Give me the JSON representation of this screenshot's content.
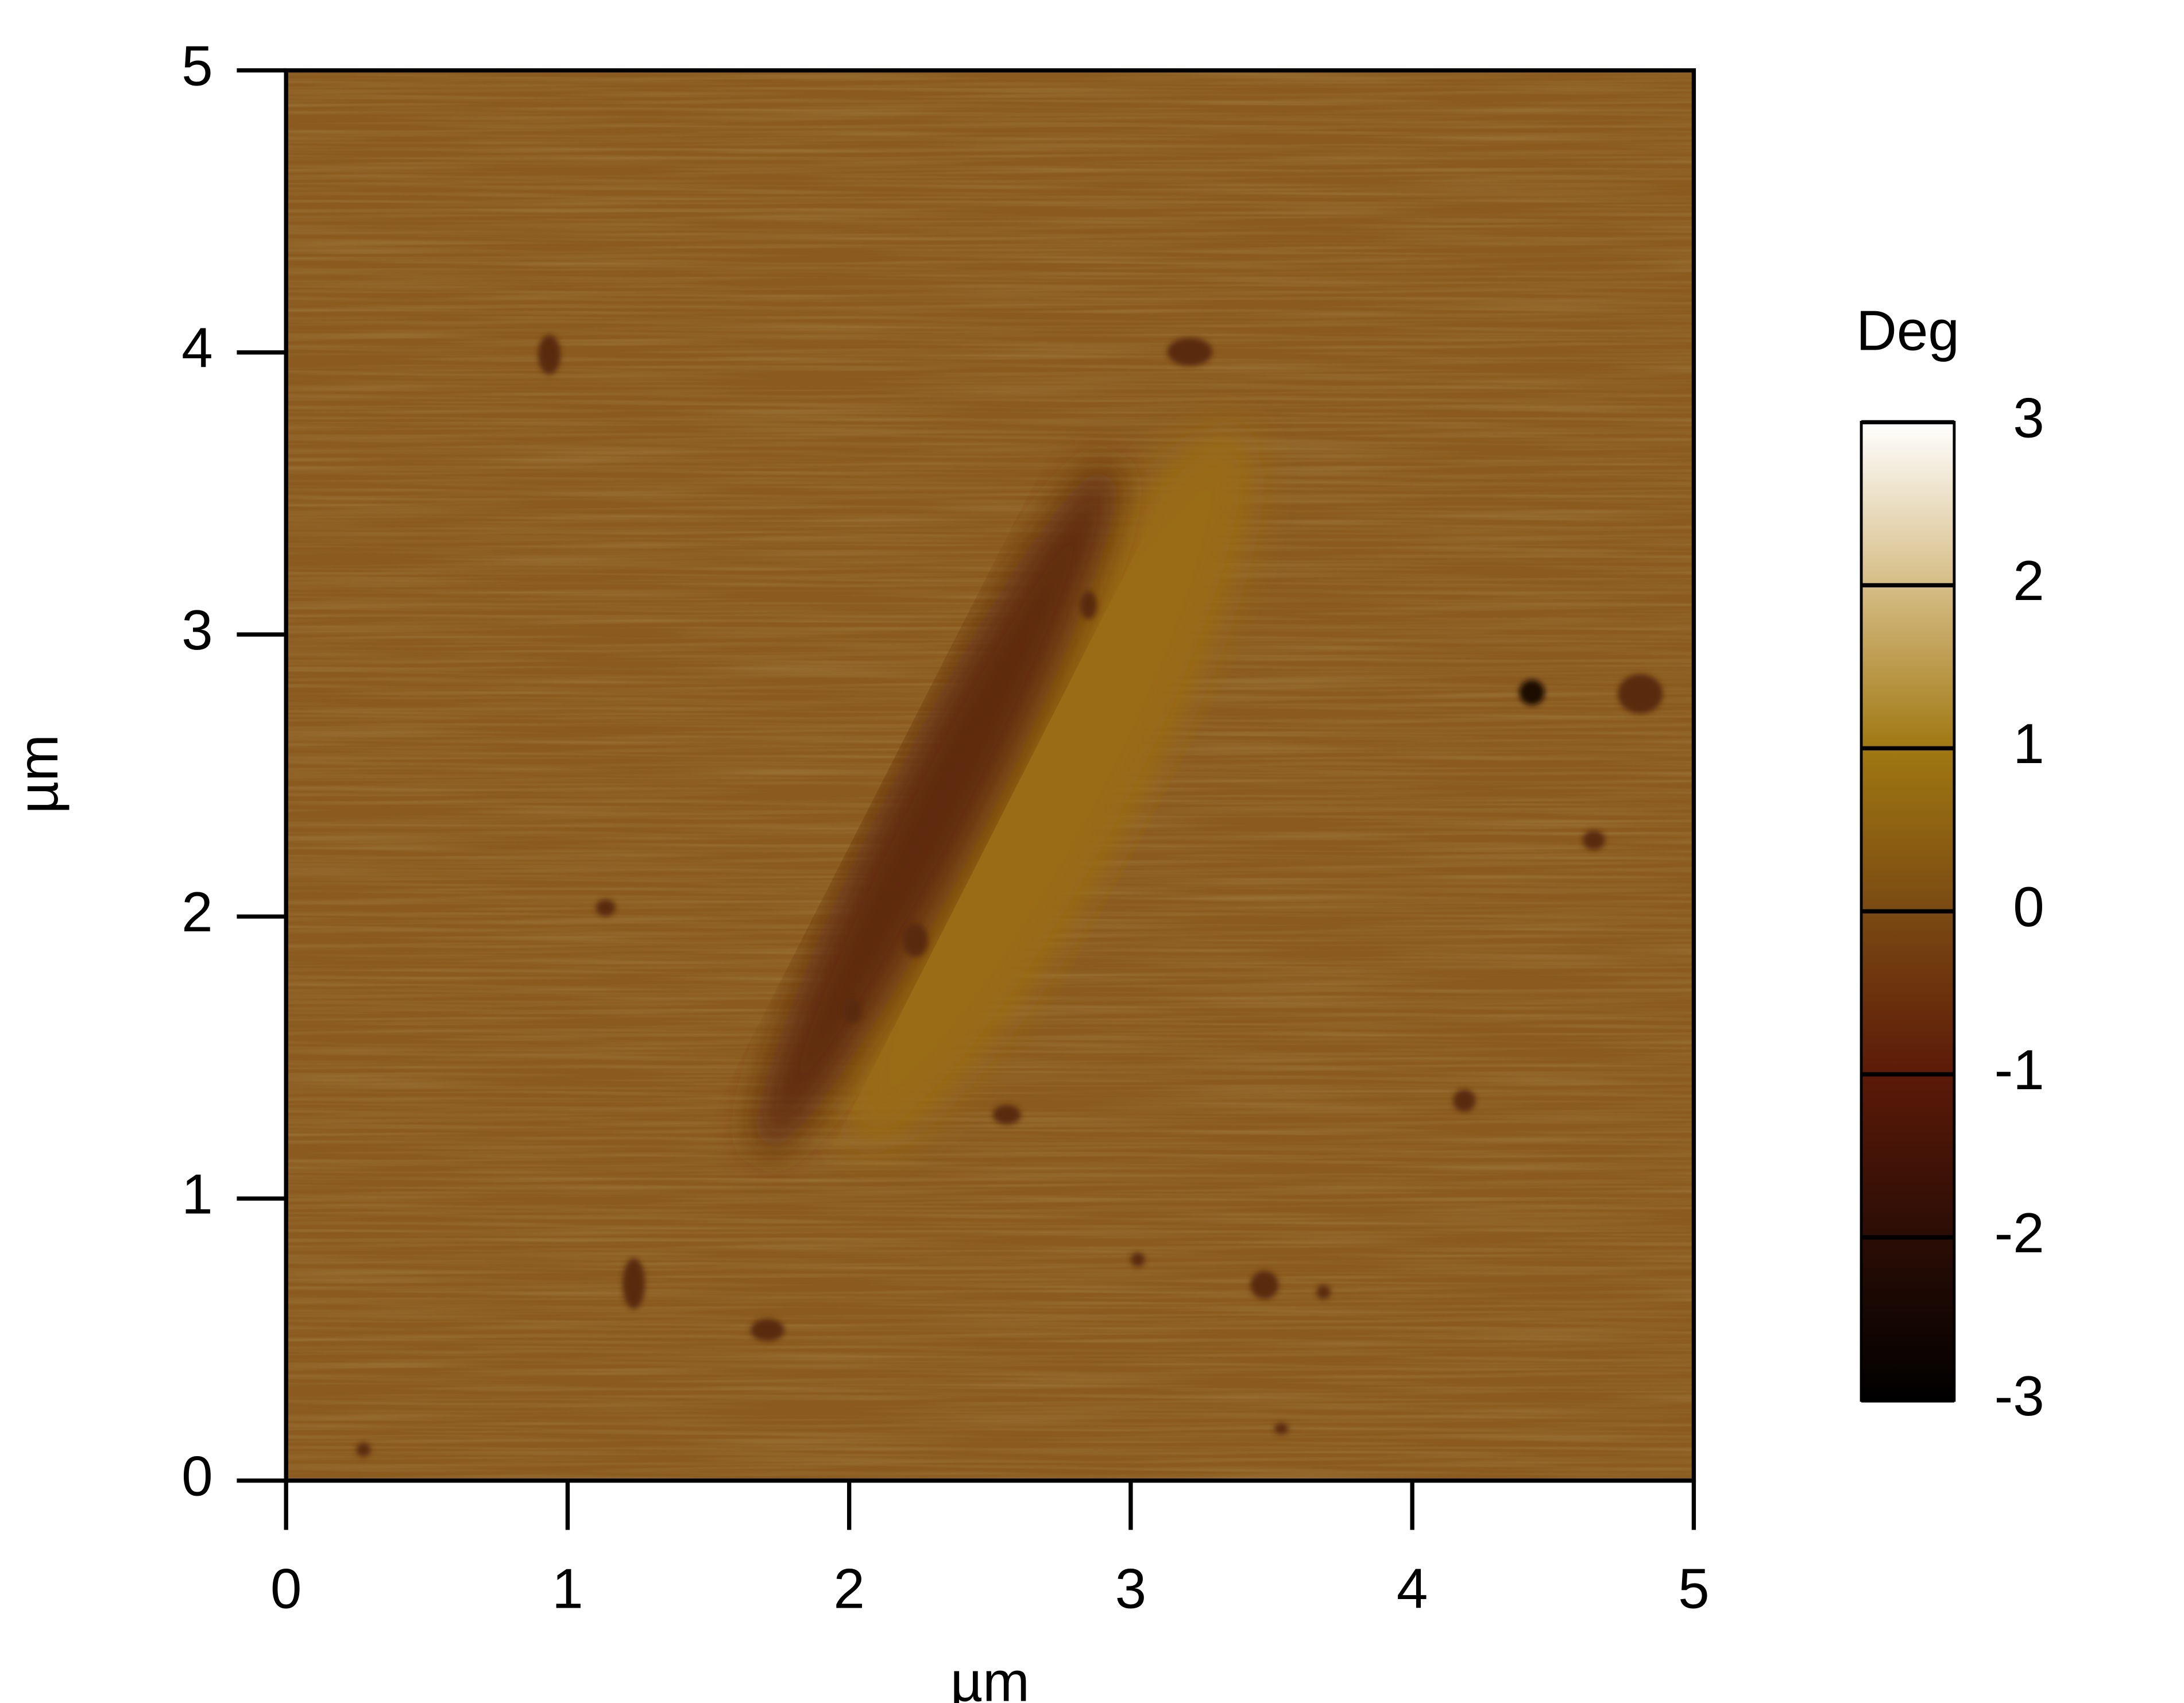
{
  "chart_data": {
    "type": "image",
    "xlabel": "µm",
    "ylabel": "µm",
    "xlim": [
      0,
      5
    ],
    "ylim": [
      0,
      5
    ],
    "xticks": [
      0,
      1,
      2,
      3,
      4,
      5
    ],
    "yticks": [
      0,
      1,
      2,
      3,
      4,
      5
    ],
    "colorbar": {
      "title": "Deg",
      "lim": [
        -3,
        3
      ],
      "ticks": [
        -3,
        -2,
        -1,
        0,
        1,
        2,
        3
      ],
      "colors": [
        "#000000",
        "#2b0d05",
        "#5c1a08",
        "#7a4a12",
        "#a07812",
        "#d6bd86",
        "#ffffff"
      ]
    }
  }
}
